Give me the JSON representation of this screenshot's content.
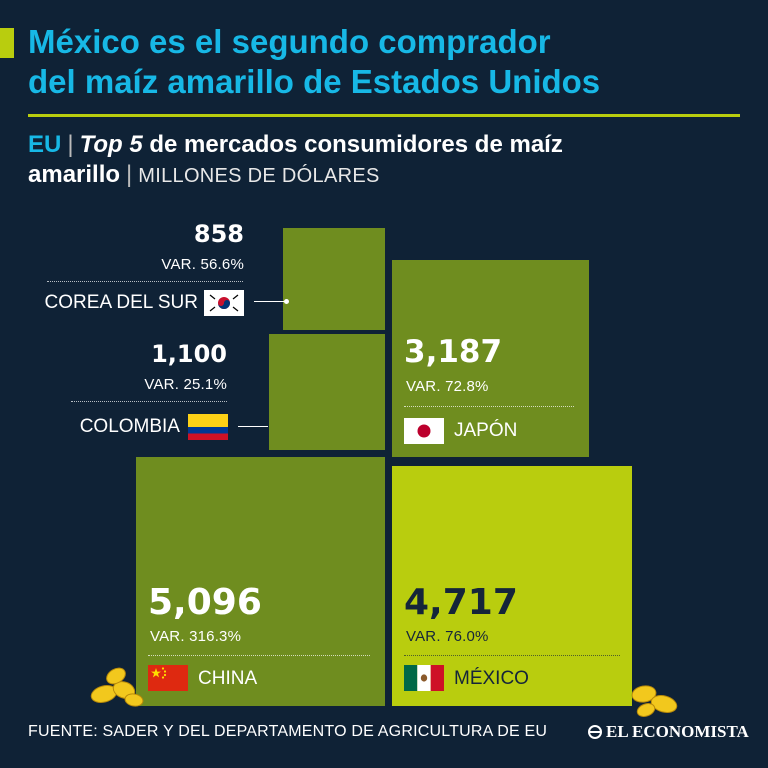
{
  "header": {
    "title_line1": "México es el segundo comprador",
    "title_line2": "del maíz amarillo de Estados Unidos",
    "subtitle_eu": "EU",
    "subtitle_sep": "|",
    "subtitle_top": "Top 5",
    "subtitle_rest1": " de mercados consumidores de maíz",
    "subtitle_rest2": "amarillo",
    "subtitle_units": "MILLONES DE DÓLARES"
  },
  "colors": {
    "background": "#0f2236",
    "accent": "#b9cd0e",
    "square": "#6f8d1f",
    "title": "#17b8e6"
  },
  "chart_data": {
    "type": "treemap",
    "title": "Top 5 de mercados consumidores de maíz amarillo",
    "units": "MILLONES DE DÓLARES",
    "categories": [
      "COREA DEL SUR",
      "COLOMBIA",
      "JAPÓN",
      "CHINA",
      "MÉXICO"
    ],
    "values": [
      858,
      1100,
      3187,
      5096,
      4717
    ],
    "value_labels": [
      "858",
      "1,100",
      "3,187",
      "5,096",
      "4,717"
    ],
    "variation_labels": [
      "VAR. 56.6%",
      "VAR. 25.1%",
      "VAR. 72.8%",
      "VAR. 316.3%",
      "VAR. 76.0%"
    ],
    "variation_percent": [
      56.6,
      25.1,
      72.8,
      316.3,
      76.0
    ],
    "highlight": "MÉXICO"
  },
  "flags": {
    "korea": "korea-flag",
    "colombia": "colombia-flag",
    "japan": "japan-flag",
    "china": "china-flag",
    "mexico": "mexico-flag"
  },
  "footer": {
    "source": "FUENTE: SADER Y DEL DEPARTAMENTO DE AGRICULTURA DE EU",
    "brand": "EL ECONOMISTA"
  }
}
